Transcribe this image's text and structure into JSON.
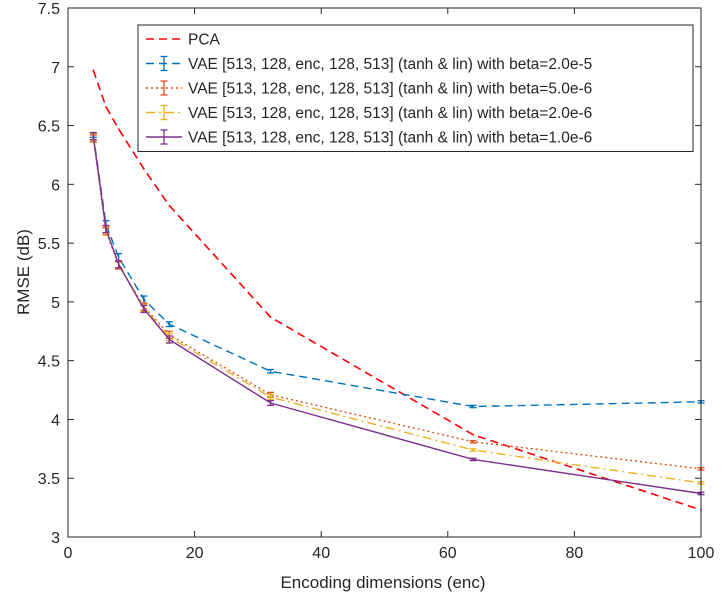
{
  "chart_data": {
    "type": "line",
    "xlabel": "Encoding dimensions (enc)",
    "ylabel": "RMSE (dB)",
    "xlim": [
      0,
      100
    ],
    "ylim": [
      3,
      7.5
    ],
    "x_ticks": [
      0,
      20,
      40,
      60,
      80,
      100
    ],
    "y_ticks": [
      3,
      3.5,
      4,
      4.5,
      5,
      5.5,
      6,
      6.5,
      7,
      7.5
    ],
    "x_tick_labels": [
      "0",
      "20",
      "40",
      "60",
      "80",
      "100"
    ],
    "y_tick_labels": [
      "3",
      "3.5",
      "4",
      "4.5",
      "5",
      "5.5",
      "6",
      "6.5",
      "7",
      "7.5"
    ],
    "grid": false,
    "legend_position": "top-right",
    "x": [
      4,
      6,
      8,
      12,
      16,
      32,
      64,
      100
    ],
    "series": [
      {
        "name": "PCA",
        "color": "#ff0000",
        "line_style": "dashed",
        "error_bars": false,
        "values": [
          6.97,
          6.66,
          6.47,
          6.13,
          5.82,
          4.87,
          3.87,
          3.23
        ]
      },
      {
        "name": "VAE [513, 128, enc, 128, 513] (tanh & lin) with beta=2.0e-5",
        "color": "#0072bd",
        "line_style": "dashed",
        "error_bars": true,
        "values": [
          6.42,
          5.66,
          5.38,
          5.02,
          4.81,
          4.41,
          4.11,
          4.15
        ],
        "errors": [
          0.02,
          0.03,
          0.03,
          0.03,
          0.02,
          0.015,
          0.01,
          0.01
        ]
      },
      {
        "name": "VAE [513, 128, enc, 128, 513] (tanh & lin) with beta=5.0e-6",
        "color": "#d95319",
        "line_style": "dotted",
        "error_bars": true,
        "values": [
          6.39,
          5.6,
          5.31,
          4.96,
          4.72,
          4.21,
          3.81,
          3.58
        ],
        "errors": [
          0.03,
          0.03,
          0.03,
          0.03,
          0.03,
          0.02,
          0.01,
          0.01
        ]
      },
      {
        "name": "VAE [513, 128, enc, 128, 513] (tanh & lin) with beta=2.0e-6",
        "color": "#edb120",
        "line_style": "dashdot",
        "error_bars": true,
        "values": [
          6.4,
          5.61,
          5.32,
          4.95,
          4.7,
          4.19,
          3.74,
          3.46
        ],
        "errors": [
          0.03,
          0.03,
          0.03,
          0.03,
          0.03,
          0.02,
          0.01,
          0.01
        ]
      },
      {
        "name": "VAE [513, 128, enc, 128, 513] (tanh & lin) with beta=1.0e-6",
        "color": "#7e2f8e",
        "line_style": "solid",
        "error_bars": true,
        "values": [
          6.41,
          5.62,
          5.32,
          4.94,
          4.68,
          4.14,
          3.66,
          3.37
        ],
        "errors": [
          0.03,
          0.03,
          0.03,
          0.03,
          0.03,
          0.02,
          0.01,
          0.01
        ]
      }
    ]
  }
}
